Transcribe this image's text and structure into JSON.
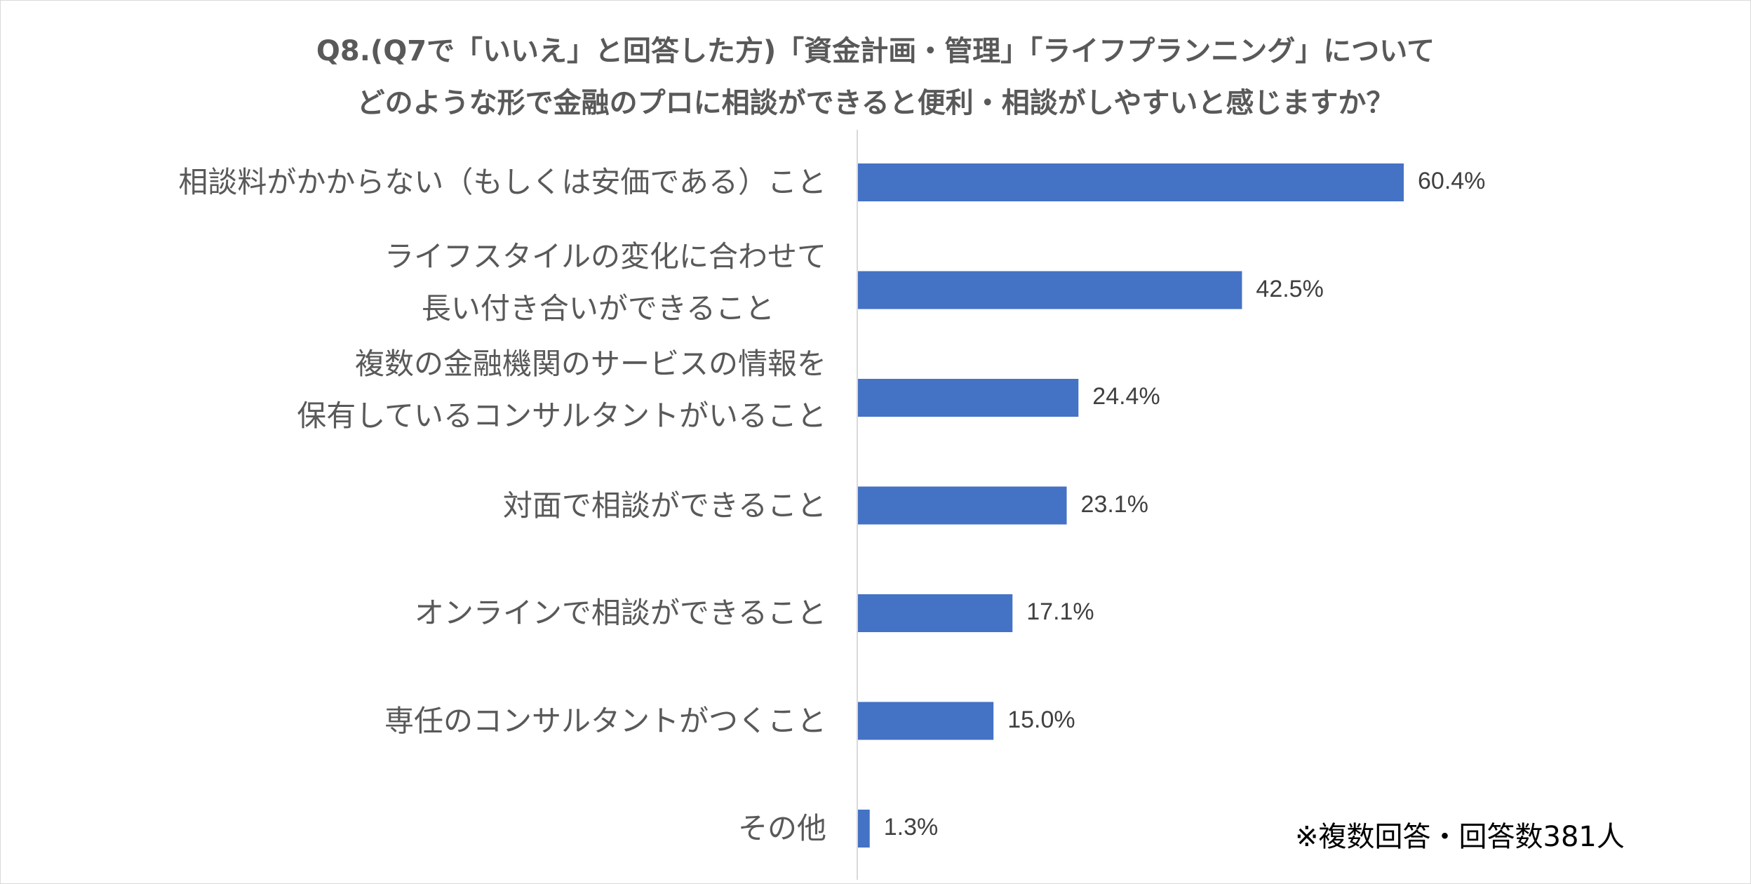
{
  "chart_data": {
    "type": "bar",
    "orientation": "horizontal",
    "title_lines": [
      "Q8.(Q7で「いいえ」と回答した方)「資金計画・管理」「ライフプランニング」について",
      "どのような形で金融のプロに相談ができると便利・相談がしやすいと感じますか？"
    ],
    "categories": [
      [
        "相談料がかからない（もしくは安価である）こと"
      ],
      [
        "ライフスタイルの変化に合わせて",
        "長い付き合いができること"
      ],
      [
        "複数の金融機関のサービスの情報を",
        "保有しているコンサルタントがいること"
      ],
      [
        "対面で相談ができること"
      ],
      [
        "オンラインで相談ができること"
      ],
      [
        "専任のコンサルタントがつくこと"
      ],
      [
        "その他"
      ]
    ],
    "values": [
      60.4,
      42.5,
      24.4,
      23.1,
      17.1,
      15.0,
      1.3
    ],
    "value_labels": [
      "60.4%",
      "42.5%",
      "24.4%",
      "23.1%",
      "17.1%",
      "15.0%",
      "1.3%"
    ],
    "unit": "%",
    "xlim": [
      0,
      65
    ],
    "bar_color": "#4472C4",
    "note": "※複数回答・回答数381人"
  }
}
